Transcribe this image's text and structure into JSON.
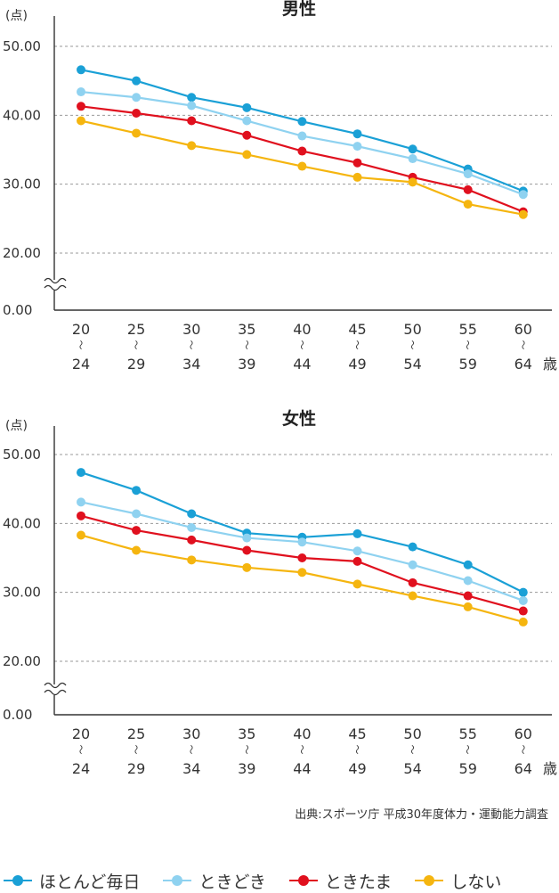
{
  "colors": {
    "hotondo_mainichi": "#1aa0d6",
    "tokidoki": "#8fd2f0",
    "tokitama": "#e0101e",
    "shinai": "#f5b50f"
  },
  "legend": [
    {
      "key": "hotondo_mainichi",
      "label": "ほとんど毎日"
    },
    {
      "key": "tokidoki",
      "label": "ときどき"
    },
    {
      "key": "tokitama",
      "label": "ときたま"
    },
    {
      "key": "shinai",
      "label": "しない"
    }
  ],
  "source": "出典:スポーツ庁 平成30年度体力・運動能力調査",
  "chart_data": [
    {
      "type": "line",
      "title": "男性",
      "ylabel": "(点)",
      "xlabel": "歳",
      "y_tick_labels": [
        "0.00",
        "20.00",
        "30.00",
        "40.00",
        "50.00"
      ],
      "y_axis_break": "0.00–20.00",
      "ylim": [
        20,
        50
      ],
      "grid": "dashed horizontal",
      "categories": [
        {
          "top": "20",
          "sep": "〜",
          "bottom": "24"
        },
        {
          "top": "25",
          "sep": "〜",
          "bottom": "29"
        },
        {
          "top": "30",
          "sep": "〜",
          "bottom": "34"
        },
        {
          "top": "35",
          "sep": "〜",
          "bottom": "39"
        },
        {
          "top": "40",
          "sep": "〜",
          "bottom": "44"
        },
        {
          "top": "45",
          "sep": "〜",
          "bottom": "49"
        },
        {
          "top": "50",
          "sep": "〜",
          "bottom": "54"
        },
        {
          "top": "55",
          "sep": "〜",
          "bottom": "59"
        },
        {
          "top": "60",
          "sep": "〜",
          "bottom": "64"
        }
      ],
      "series": [
        {
          "key": "hotondo_mainichi",
          "name": "ほとんど毎日",
          "values": [
            46.6,
            45.0,
            42.6,
            41.1,
            39.1,
            37.3,
            35.1,
            32.2,
            29.0
          ]
        },
        {
          "key": "tokidoki",
          "name": "ときどき",
          "values": [
            43.4,
            42.6,
            41.4,
            39.2,
            37.0,
            35.5,
            33.7,
            31.5,
            28.5
          ]
        },
        {
          "key": "tokitama",
          "name": "ときたま",
          "values": [
            41.3,
            40.3,
            39.2,
            37.1,
            34.8,
            33.1,
            31.0,
            29.2,
            26.0
          ]
        },
        {
          "key": "shinai",
          "name": "しない",
          "values": [
            39.2,
            37.4,
            35.6,
            34.3,
            32.6,
            31.0,
            30.3,
            27.1,
            25.6
          ]
        }
      ]
    },
    {
      "type": "line",
      "title": "女性",
      "ylabel": "(点)",
      "xlabel": "歳",
      "y_tick_labels": [
        "0.00",
        "20.00",
        "30.00",
        "40.00",
        "50.00"
      ],
      "y_axis_break": "0.00–20.00",
      "ylim": [
        20,
        50
      ],
      "grid": "dashed horizontal",
      "categories": [
        {
          "top": "20",
          "sep": "〜",
          "bottom": "24"
        },
        {
          "top": "25",
          "sep": "〜",
          "bottom": "29"
        },
        {
          "top": "30",
          "sep": "〜",
          "bottom": "34"
        },
        {
          "top": "35",
          "sep": "〜",
          "bottom": "39"
        },
        {
          "top": "40",
          "sep": "〜",
          "bottom": "44"
        },
        {
          "top": "45",
          "sep": "〜",
          "bottom": "49"
        },
        {
          "top": "50",
          "sep": "〜",
          "bottom": "54"
        },
        {
          "top": "55",
          "sep": "〜",
          "bottom": "59"
        },
        {
          "top": "60",
          "sep": "〜",
          "bottom": "64"
        }
      ],
      "series": [
        {
          "key": "hotondo_mainichi",
          "name": "ほとんど毎日",
          "values": [
            47.4,
            44.8,
            41.4,
            38.6,
            38.0,
            38.5,
            36.6,
            34.0,
            30.0
          ]
        },
        {
          "key": "tokidoki",
          "name": "ときどき",
          "values": [
            43.1,
            41.4,
            39.4,
            37.9,
            37.3,
            36.0,
            34.0,
            31.7,
            28.8
          ]
        },
        {
          "key": "tokitama",
          "name": "ときたま",
          "values": [
            41.1,
            39.0,
            37.6,
            36.1,
            35.0,
            34.5,
            31.4,
            29.5,
            27.3
          ]
        },
        {
          "key": "shinai",
          "name": "しない",
          "values": [
            38.3,
            36.1,
            34.7,
            33.6,
            32.9,
            31.2,
            29.5,
            27.9,
            25.7
          ]
        }
      ]
    }
  ]
}
